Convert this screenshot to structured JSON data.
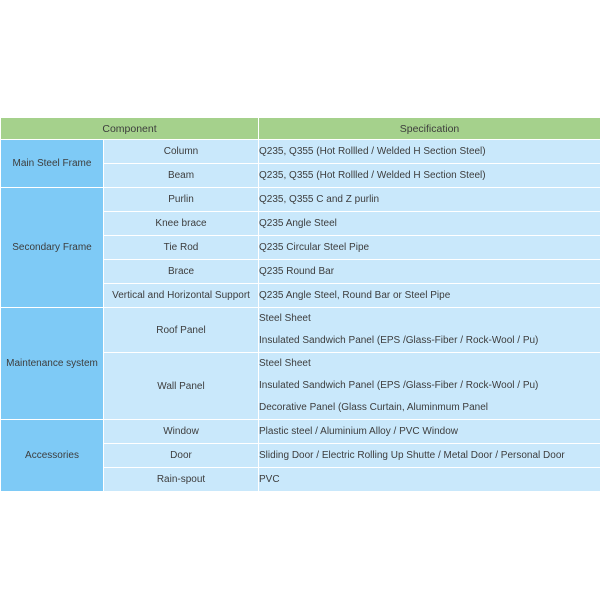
{
  "colors": {
    "header_bg": "#a5d18c",
    "group_bg": "#7ecaf6",
    "cell_bg": "#c9e8fb",
    "separator": "#ffffff",
    "text": "#3d3d3d"
  },
  "table": {
    "headers": [
      "Component",
      "Specification"
    ],
    "groups": [
      {
        "name": "Main Steel Frame",
        "rows": [
          {
            "component": "Column",
            "specs": [
              "Q235, Q355 (Hot Rollled / Welded H Section Steel)"
            ]
          },
          {
            "component": "Beam",
            "specs": [
              "Q235, Q355 (Hot Rollled / Welded H Section Steel)"
            ]
          }
        ]
      },
      {
        "name": "Secondary Frame",
        "rows": [
          {
            "component": "Purlin",
            "specs": [
              "Q235, Q355  C and Z purlin"
            ]
          },
          {
            "component": "Knee brace",
            "specs": [
              "Q235 Angle Steel"
            ]
          },
          {
            "component": "Tie Rod",
            "specs": [
              "Q235 Circular Steel Pipe"
            ]
          },
          {
            "component": "Brace",
            "specs": [
              "Q235 Round Bar"
            ]
          },
          {
            "component": "Vertical and Horizontal Support",
            "specs": [
              "Q235 Angle Steel, Round Bar or Steel Pipe"
            ]
          }
        ]
      },
      {
        "name": "Maintenance system",
        "rows": [
          {
            "component": "Roof Panel",
            "specs": [
              "Steel Sheet",
              "Insulated Sandwich Panel (EPS /Glass-Fiber /  Rock-Wool / Pu)"
            ]
          },
          {
            "component": "Wall Panel",
            "specs": [
              "Steel Sheet",
              "Insulated Sandwich Panel (EPS /Glass-Fiber /  Rock-Wool / Pu)",
              "Decorative Panel (Glass Curtain, Aluminmum Panel"
            ]
          }
        ]
      },
      {
        "name": "Accessories",
        "rows": [
          {
            "component": "Window",
            "specs": [
              "Plastic steel / Aluminium Alloy  / PVC Window"
            ]
          },
          {
            "component": "Door",
            "specs": [
              "Sliding Door / Electric Rolling Up Shutte / Metal Door / Personal Door"
            ]
          },
          {
            "component": "Rain-spout",
            "specs": [
              "PVC"
            ]
          }
        ]
      }
    ]
  }
}
